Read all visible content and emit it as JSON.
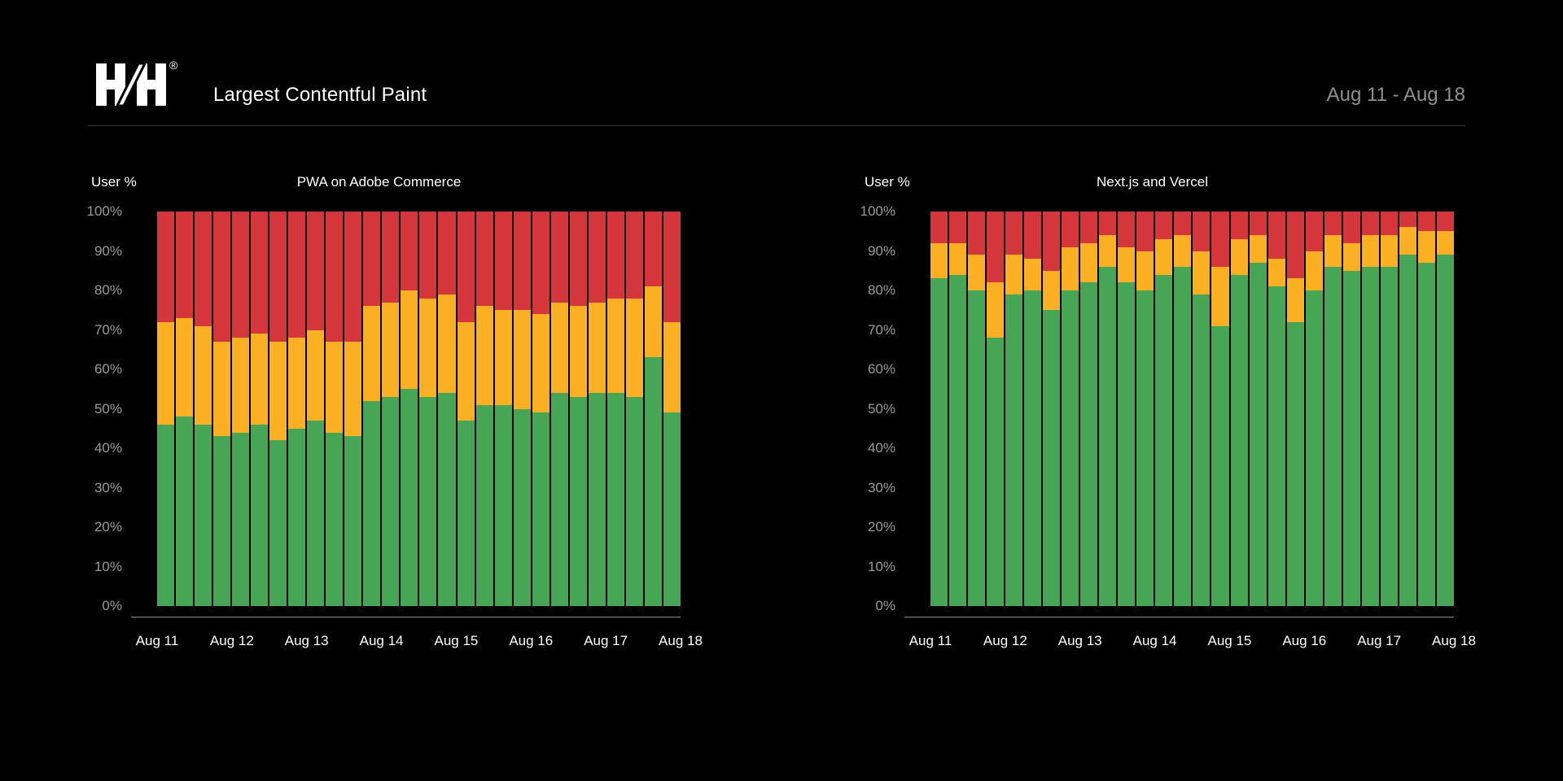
{
  "header": {
    "logo_text": "H/H",
    "registered": "®",
    "title": "Largest Contentful Paint",
    "date_range": "Aug 11 - Aug 18"
  },
  "y_axis_label": "User %",
  "y_ticks": [
    "100%",
    "90%",
    "80%",
    "70%",
    "60%",
    "50%",
    "40%",
    "30%",
    "20%",
    "10%",
    "0%"
  ],
  "colors": {
    "good": "#47A556",
    "needs_improvement": "#FBB024",
    "poor": "#D4363C",
    "background": "#000000",
    "axis_text": "#9B9B9B",
    "muted_text": "#8F8F8F",
    "divider": "#353535",
    "axis_line": "#8D8D8D"
  },
  "chart_data": [
    {
      "type": "bar",
      "stacked": true,
      "title": "PWA on Adobe Commerce",
      "ylabel": "User %",
      "ylim": [
        0,
        100
      ],
      "grid": false,
      "legend": false,
      "bar_count": 28,
      "x_tick_labels": [
        "Aug 11",
        "Aug 12",
        "Aug 13",
        "Aug 14",
        "Aug 15",
        "Aug 16",
        "Aug 17",
        "Aug 18"
      ],
      "series": [
        {
          "name": "good",
          "color_key": "good",
          "values": [
            46,
            48,
            46,
            43,
            44,
            46,
            42,
            45,
            47,
            44,
            43,
            52,
            53,
            55,
            53,
            54,
            47,
            51,
            51,
            50,
            49,
            54,
            53,
            54,
            54,
            53,
            63,
            49
          ]
        },
        {
          "name": "needs-improvement",
          "color_key": "needs_improvement",
          "values": [
            26,
            25,
            25,
            24,
            24,
            23,
            25,
            23,
            23,
            23,
            24,
            24,
            24,
            25,
            25,
            25,
            25,
            25,
            24,
            25,
            25,
            23,
            23,
            23,
            24,
            25,
            18,
            23
          ]
        },
        {
          "name": "poor",
          "color_key": "poor",
          "values": [
            28,
            27,
            29,
            33,
            32,
            31,
            33,
            32,
            30,
            33,
            33,
            24,
            23,
            20,
            22,
            21,
            28,
            24,
            25,
            25,
            26,
            23,
            24,
            23,
            22,
            22,
            19,
            28
          ]
        }
      ]
    },
    {
      "type": "bar",
      "stacked": true,
      "title": "Next.js and Vercel",
      "ylabel": "User %",
      "ylim": [
        0,
        100
      ],
      "grid": false,
      "legend": false,
      "bar_count": 28,
      "x_tick_labels": [
        "Aug 11",
        "Aug 12",
        "Aug 13",
        "Aug 14",
        "Aug 15",
        "Aug 16",
        "Aug 17",
        "Aug 18"
      ],
      "series": [
        {
          "name": "good",
          "color_key": "good",
          "values": [
            83,
            84,
            80,
            68,
            79,
            80,
            75,
            80,
            82,
            86,
            82,
            80,
            84,
            86,
            79,
            71,
            84,
            87,
            81,
            72,
            80,
            86,
            85,
            86,
            86,
            89,
            87,
            89
          ]
        },
        {
          "name": "needs-improvement",
          "color_key": "needs_improvement",
          "values": [
            9,
            8,
            9,
            14,
            10,
            8,
            10,
            11,
            10,
            8,
            9,
            10,
            9,
            8,
            11,
            15,
            9,
            7,
            7,
            11,
            10,
            8,
            7,
            8,
            8,
            7,
            8,
            6
          ]
        },
        {
          "name": "poor",
          "color_key": "poor",
          "values": [
            8,
            8,
            11,
            18,
            11,
            12,
            15,
            9,
            8,
            6,
            9,
            10,
            7,
            6,
            10,
            14,
            7,
            6,
            12,
            17,
            10,
            6,
            8,
            6,
            6,
            4,
            5,
            5
          ]
        }
      ]
    }
  ]
}
